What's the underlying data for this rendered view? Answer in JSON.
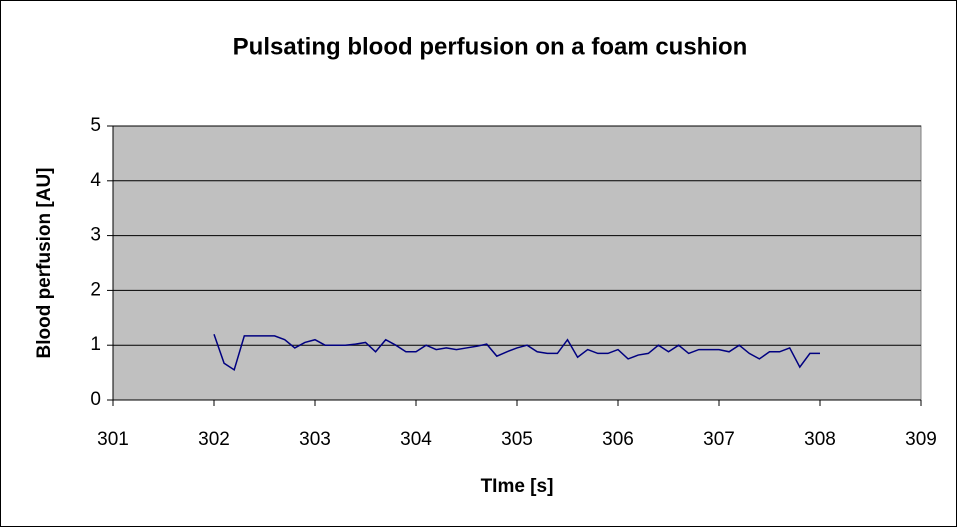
{
  "chart_data": {
    "type": "line",
    "title": "Pulsating blood perfusion on a foam cushion",
    "x_label": "TIme [s]",
    "y_label": "Blood perfusion [AU]",
    "x": [
      302.0,
      302.1,
      302.2,
      302.3,
      302.4,
      302.5,
      302.6,
      302.7,
      302.8,
      302.9,
      303.0,
      303.1,
      303.2,
      303.3,
      303.4,
      303.5,
      303.6,
      303.7,
      303.8,
      303.9,
      304.0,
      304.1,
      304.2,
      304.3,
      304.4,
      304.5,
      304.6,
      304.7,
      304.8,
      304.9,
      305.0,
      305.1,
      305.2,
      305.3,
      305.4,
      305.5,
      305.6,
      305.7,
      305.8,
      305.9,
      306.0,
      306.1,
      306.2,
      306.3,
      306.4,
      306.5,
      306.6,
      306.7,
      306.8,
      306.9,
      307.0,
      307.1,
      307.2,
      307.3,
      307.4,
      307.5,
      307.6,
      307.7,
      307.8,
      307.9,
      308.0
    ],
    "series": [
      {
        "name": "Blood perfusion",
        "color": "#000080",
        "values": [
          1.2,
          0.67,
          0.55,
          1.17,
          1.17,
          1.17,
          1.17,
          1.1,
          0.95,
          1.05,
          1.1,
          1.0,
          1.0,
          1.0,
          1.02,
          1.05,
          0.88,
          1.1,
          1.0,
          0.88,
          0.88,
          1.0,
          0.92,
          0.95,
          0.92,
          0.95,
          0.98,
          1.02,
          0.8,
          0.88,
          0.95,
          1.0,
          0.88,
          0.85,
          0.85,
          1.1,
          0.78,
          0.92,
          0.85,
          0.85,
          0.92,
          0.75,
          0.82,
          0.85,
          1.0,
          0.88,
          1.0,
          0.85,
          0.92,
          0.92,
          0.92,
          0.88,
          1.0,
          0.85,
          0.75,
          0.88,
          0.88,
          0.95,
          0.6,
          0.85,
          0.85
        ]
      }
    ],
    "xlim": [
      301,
      309
    ],
    "xticks": [
      301,
      302,
      303,
      304,
      305,
      306,
      307,
      308,
      309
    ],
    "ylim": [
      0,
      5
    ],
    "yticks": [
      0,
      1,
      2,
      3,
      4,
      5
    ],
    "grid": true,
    "plot_background": "#c0c0c0"
  }
}
